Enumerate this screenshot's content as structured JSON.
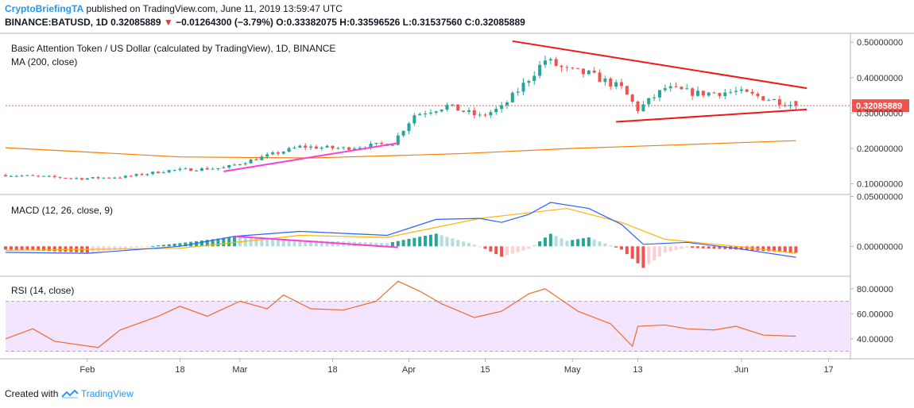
{
  "header": {
    "author": "CryptoBriefingTA",
    "published": "published on TradingView.com, June 11, 2019 13:59:47 UTC",
    "symbol": "BINANCE:BATUSD, 1D",
    "last": "0.32085889",
    "change_arrow": "▼",
    "change": "−0.01264300 (−3.79%)",
    "ohlc": "O:0.33382075 H:0.33596526 L:0.31537560 C:0.32085889"
  },
  "panes": {
    "main_title": "Basic Attention Token / US Dollar (calculated by TradingView), 1D, BINANCE",
    "ma_label": "MA (200, close)",
    "macd_label": "MACD (12, 26, close, 9)",
    "rsi_label": "RSI (14, close)"
  },
  "price_tag": "0.32085889",
  "footer": {
    "created": "Created with",
    "brand": "TradingView",
    "logo_icon": "tradingview-logo-icon"
  },
  "colors": {
    "up": "#26a69a",
    "down": "#ef5350",
    "ma": "#f57c00",
    "macd": "#2962ff",
    "signal": "#ffb300",
    "trend_red": "#f01818",
    "trend_magenta": "#ff3dd4",
    "rsi": "#f06a2a",
    "rsi_band": "#f3e5ff"
  },
  "chart_data": [
    {
      "type": "candlestick",
      "title": "Basic Attention Token / US Dollar (calculated by TradingView), 1D, BINANCE",
      "x_range": [
        "2019-01-17",
        "2019-06-21"
      ],
      "x_ticks": [
        "Feb",
        "18",
        "Mar",
        "18",
        "Apr",
        "15",
        "May",
        "13",
        "Jun",
        "17"
      ],
      "y_ticks": [
        "0.50000000",
        "0.40000000",
        "0.30000000",
        "0.20000000",
        "0.10000000"
      ],
      "ylim": [
        0.07,
        0.525
      ],
      "last_price": 0.32085889,
      "keypoints": [
        [
          "2019-01-17",
          0.125
        ],
        [
          "2019-01-31",
          0.115
        ],
        [
          "2019-02-08",
          0.12
        ],
        [
          "2019-02-16",
          0.138
        ],
        [
          "2019-02-26",
          0.145
        ],
        [
          "2019-03-05",
          0.175
        ],
        [
          "2019-03-12",
          0.205
        ],
        [
          "2019-03-20",
          0.2
        ],
        [
          "2019-03-29",
          0.215
        ],
        [
          "2019-04-02",
          0.295
        ],
        [
          "2019-04-08",
          0.32
        ],
        [
          "2019-04-14",
          0.29
        ],
        [
          "2019-04-18",
          0.315
        ],
        [
          "2019-04-22",
          0.38
        ],
        [
          "2019-04-26",
          0.45
        ],
        [
          "2019-04-30",
          0.42
        ],
        [
          "2019-05-04",
          0.41
        ],
        [
          "2019-05-10",
          0.37
        ],
        [
          "2019-05-13",
          0.31
        ],
        [
          "2019-05-18",
          0.37
        ],
        [
          "2019-05-24",
          0.355
        ],
        [
          "2019-05-31",
          0.36
        ],
        [
          "2019-06-06",
          0.34
        ],
        [
          "2019-06-11",
          0.321
        ]
      ],
      "ma200": [
        [
          "2019-01-17",
          0.202
        ],
        [
          "2019-02-18",
          0.176
        ],
        [
          "2019-03-14",
          0.173
        ],
        [
          "2019-04-10",
          0.185
        ],
        [
          "2019-05-01",
          0.2
        ],
        [
          "2019-05-20",
          0.21
        ],
        [
          "2019-06-11",
          0.222
        ]
      ],
      "trendlines": [
        {
          "color": "magenta",
          "points": [
            [
              "2019-02-26",
              0.135
            ],
            [
              "2019-03-30",
              0.215
            ]
          ]
        },
        {
          "color": "red",
          "points": [
            [
              "2019-04-20",
              0.503
            ],
            [
              "2019-06-13",
              0.37
            ]
          ]
        },
        {
          "color": "red",
          "points": [
            [
              "2019-05-09",
              0.275
            ],
            [
              "2019-06-13",
              0.31
            ]
          ]
        }
      ]
    },
    {
      "type": "line",
      "title": "MACD (12, 26, close, 9)",
      "y_ticks": [
        "0.05000000",
        "0.00000000"
      ],
      "ylim": [
        -0.03,
        0.052
      ],
      "macd": [
        [
          "2019-01-17",
          -0.006
        ],
        [
          "2019-02-01",
          -0.007
        ],
        [
          "2019-02-18",
          0.0
        ],
        [
          "2019-02-28",
          0.01
        ],
        [
          "2019-03-12",
          0.015
        ],
        [
          "2019-03-28",
          0.011
        ],
        [
          "2019-04-06",
          0.027
        ],
        [
          "2019-04-14",
          0.028
        ],
        [
          "2019-04-18",
          0.024
        ],
        [
          "2019-04-23",
          0.032
        ],
        [
          "2019-04-27",
          0.044
        ],
        [
          "2019-05-04",
          0.038
        ],
        [
          "2019-05-10",
          0.022
        ],
        [
          "2019-05-14",
          0.002
        ],
        [
          "2019-05-22",
          0.004
        ],
        [
          "2019-05-31",
          -0.002
        ],
        [
          "2019-06-11",
          -0.011
        ]
      ],
      "signal": [
        [
          "2019-01-17",
          -0.004
        ],
        [
          "2019-02-18",
          -0.002
        ],
        [
          "2019-03-12",
          0.011
        ],
        [
          "2019-03-28",
          0.009
        ],
        [
          "2019-04-14",
          0.028
        ],
        [
          "2019-04-30",
          0.038
        ],
        [
          "2019-05-10",
          0.024
        ],
        [
          "2019-05-18",
          0.007
        ],
        [
          "2019-05-31",
          0.0
        ],
        [
          "2019-06-11",
          -0.007
        ]
      ],
      "trendlines": [
        {
          "color": "magenta",
          "points": [
            [
              "2019-02-28",
              0.01
            ],
            [
              "2019-03-30",
              -0.001
            ]
          ]
        }
      ]
    },
    {
      "type": "line",
      "title": "RSI (14, close)",
      "y_ticks": [
        "80.00000",
        "60.00000",
        "40.00000"
      ],
      "ylim": [
        24,
        90
      ],
      "bands": [
        30,
        70
      ],
      "values": [
        [
          "2019-01-17",
          40
        ],
        [
          "2019-01-22",
          48
        ],
        [
          "2019-01-26",
          38
        ],
        [
          "2019-02-03",
          33
        ],
        [
          "2019-02-07",
          47
        ],
        [
          "2019-02-14",
          58
        ],
        [
          "2019-02-18",
          66
        ],
        [
          "2019-02-23",
          58
        ],
        [
          "2019-03-01",
          70
        ],
        [
          "2019-03-06",
          64
        ],
        [
          "2019-03-09",
          75
        ],
        [
          "2019-03-14",
          64
        ],
        [
          "2019-03-20",
          63
        ],
        [
          "2019-03-26",
          70
        ],
        [
          "2019-03-30",
          86
        ],
        [
          "2019-04-03",
          78
        ],
        [
          "2019-04-07",
          68
        ],
        [
          "2019-04-13",
          57
        ],
        [
          "2019-04-18",
          62
        ],
        [
          "2019-04-23",
          76
        ],
        [
          "2019-04-26",
          80
        ],
        [
          "2019-05-02",
          62
        ],
        [
          "2019-05-08",
          52
        ],
        [
          "2019-05-12",
          34
        ],
        [
          "2019-05-13",
          50
        ],
        [
          "2019-05-18",
          51
        ],
        [
          "2019-05-22",
          48
        ],
        [
          "2019-05-27",
          47
        ],
        [
          "2019-05-31",
          50
        ],
        [
          "2019-06-05",
          43
        ],
        [
          "2019-06-11",
          42
        ]
      ]
    }
  ]
}
